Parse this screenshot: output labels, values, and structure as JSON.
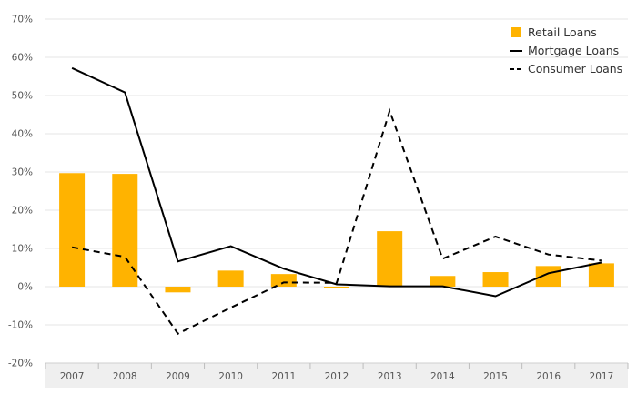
{
  "chart_data": {
    "type": "bar",
    "categories": [
      "2007",
      "2008",
      "2009",
      "2010",
      "2011",
      "2012",
      "2013",
      "2014",
      "2015",
      "2016",
      "2017"
    ],
    "ylim": [
      -20,
      70
    ],
    "yticks": [
      -20,
      -10,
      0,
      10,
      20,
      30,
      40,
      50,
      60,
      70
    ],
    "ytick_labels": [
      "-20%",
      "-10%",
      "0%",
      "10%",
      "20%",
      "30%",
      "40%",
      "50%",
      "60%",
      "70%"
    ],
    "grid": true,
    "legend_position": "top-right",
    "series": [
      {
        "name": "Retail Loans",
        "mark": "bar",
        "color": "#FFB300",
        "values": [
          29.7,
          29.5,
          -1.5,
          4.2,
          3.3,
          -0.4,
          14.5,
          2.8,
          3.8,
          5.4,
          6.1
        ]
      },
      {
        "name": "Mortgage Loans",
        "mark": "line",
        "style": "solid",
        "color": "#000000",
        "values": [
          57.2,
          50.8,
          6.6,
          10.6,
          4.7,
          0.6,
          0.1,
          0.1,
          -2.5,
          3.5,
          6.3
        ]
      },
      {
        "name": "Consumer Loans",
        "mark": "line",
        "style": "dashed",
        "color": "#000000",
        "values": [
          10.3,
          7.8,
          -12.3,
          -5.5,
          1.1,
          1.0,
          46.0,
          7.3,
          13.1,
          8.4,
          6.8
        ]
      }
    ]
  }
}
